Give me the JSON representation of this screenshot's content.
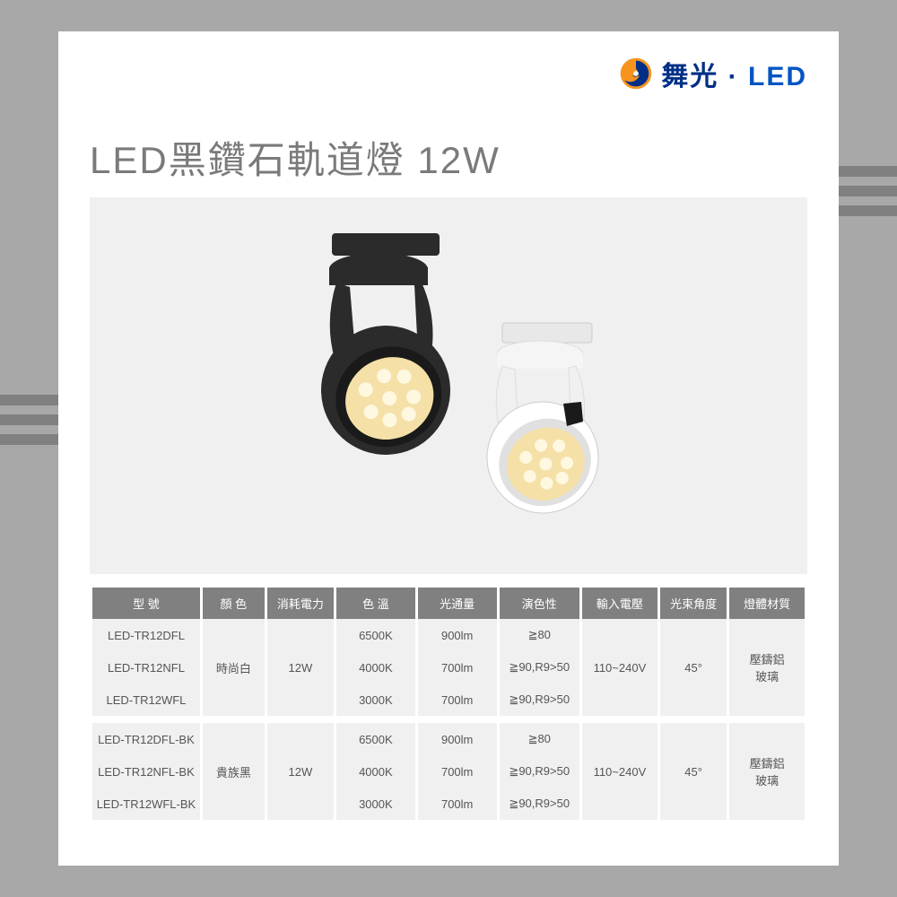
{
  "brand": {
    "name1": "舞光",
    "dot": "·",
    "name2": "LED",
    "logo_outer": "#f7941e",
    "logo_swirl": "#002f87"
  },
  "title": "LED黑鑽石軌道燈 12W",
  "product_image": {
    "bg": "#f0f0f0",
    "lamp_black": "#2b2b2b",
    "lamp_white": "#ffffff",
    "led_glow": "#f5e0a8"
  },
  "spec_table": {
    "header_bg": "#808080",
    "header_color": "#ffffff",
    "cell_bg": "#f0f0f0",
    "cell_color": "#555555",
    "columns": [
      "型 號",
      "顏 色",
      "消耗電力",
      "色 溫",
      "光通量",
      "演色性",
      "輸入電壓",
      "光束角度",
      "燈體材質"
    ],
    "groups": [
      {
        "color": "時尚白",
        "power": "12W",
        "voltage": "110~240V",
        "angle": "45°",
        "material": "壓鑄鋁\n玻璃",
        "rows": [
          {
            "model": "LED-TR12DFL",
            "temp": "6500K",
            "flux": "900lm",
            "cri": "≧80"
          },
          {
            "model": "LED-TR12NFL",
            "temp": "4000K",
            "flux": "700lm",
            "cri": "≧90,R9>50"
          },
          {
            "model": "LED-TR12WFL",
            "temp": "3000K",
            "flux": "700lm",
            "cri": "≧90,R9>50"
          }
        ]
      },
      {
        "color": "貴族黑",
        "power": "12W",
        "voltage": "110~240V",
        "angle": "45°",
        "material": "壓鑄鋁\n玻璃",
        "rows": [
          {
            "model": "LED-TR12DFL-BK",
            "temp": "6500K",
            "flux": "900lm",
            "cri": "≧80"
          },
          {
            "model": "LED-TR12NFL-BK",
            "temp": "4000K",
            "flux": "700lm",
            "cri": "≧90,R9>50"
          },
          {
            "model": "LED-TR12WFL-BK",
            "temp": "3000K",
            "flux": "700lm",
            "cri": "≧90,R9>50"
          }
        ]
      }
    ]
  },
  "deco": {
    "bar_color": "#808080"
  }
}
